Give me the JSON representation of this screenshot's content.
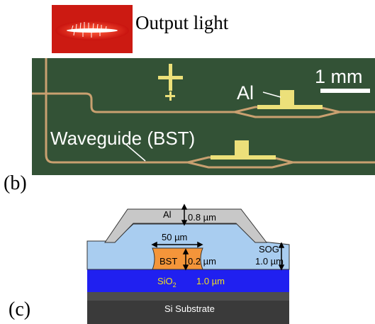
{
  "panel_b": {
    "output_label": "Output light",
    "al_label": "Al",
    "scale_label": "1 mm",
    "waveguide_label": "Waveguide (BST)",
    "panel_label": "(b)"
  },
  "panel_c": {
    "panel_label": "(c)",
    "al_layer": "Al",
    "al_thickness": "0.8 µm",
    "bst_width": "50 µm",
    "bst_layer": "BST",
    "bst_thickness": "0.2 µm",
    "sog_layer": "SOG",
    "sog_thickness": "1.0 µm",
    "sio2_base": "SiO",
    "sio2_sub": "2",
    "sio2_thickness": "1.0 µm",
    "substrate": "Si Substrate"
  },
  "colors": {
    "photo_background": "#2f4d33",
    "waveguide": "#c9a070",
    "electrode": "#ece07a",
    "al_layer": "#c8c8c8",
    "sog_layer": "#a9cdf0",
    "bst_layer": "#f4953a",
    "sio2_layer": "#2020f0",
    "sio2_text": "#f0e020",
    "substrate": "#3a3a3a"
  }
}
